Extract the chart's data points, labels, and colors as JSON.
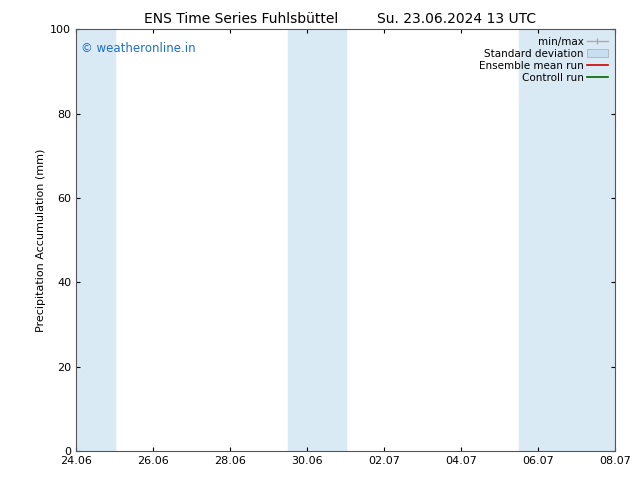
{
  "title_left": "ENS Time Series Fuhlsbüttel",
  "title_right": "Su. 23.06.2024 13 UTC",
  "ylabel": "Precipitation Accumulation (mm)",
  "watermark": "© weatheronline.in",
  "watermark_color": "#1a6fcc",
  "ylim": [
    0,
    100
  ],
  "yticks": [
    0,
    20,
    40,
    60,
    80,
    100
  ],
  "xtick_labels": [
    "24.06",
    "26.06",
    "28.06",
    "30.06",
    "02.07",
    "04.07",
    "06.07",
    "08.07"
  ],
  "xlim": [
    0,
    14
  ],
  "shaded_bands": [
    [
      0.0,
      1.0
    ],
    [
      5.5,
      7.0
    ],
    [
      11.5,
      12.5
    ],
    [
      12.5,
      14.0
    ]
  ],
  "band_color": "#daeaf5",
  "legend_entries": [
    {
      "label": "min/max",
      "color": "#aaaaaa"
    },
    {
      "label": "Standard deviation",
      "color": "#c8dff0"
    },
    {
      "label": "Ensemble mean run",
      "color": "#cc0000"
    },
    {
      "label": "Controll run",
      "color": "#006600"
    }
  ],
  "bg_color": "#ffffff",
  "border_color": "#555555",
  "font_size_title": 10,
  "font_size_legend": 7.5,
  "font_size_axis_label": 8,
  "font_size_tick": 8,
  "font_size_watermark": 8.5
}
